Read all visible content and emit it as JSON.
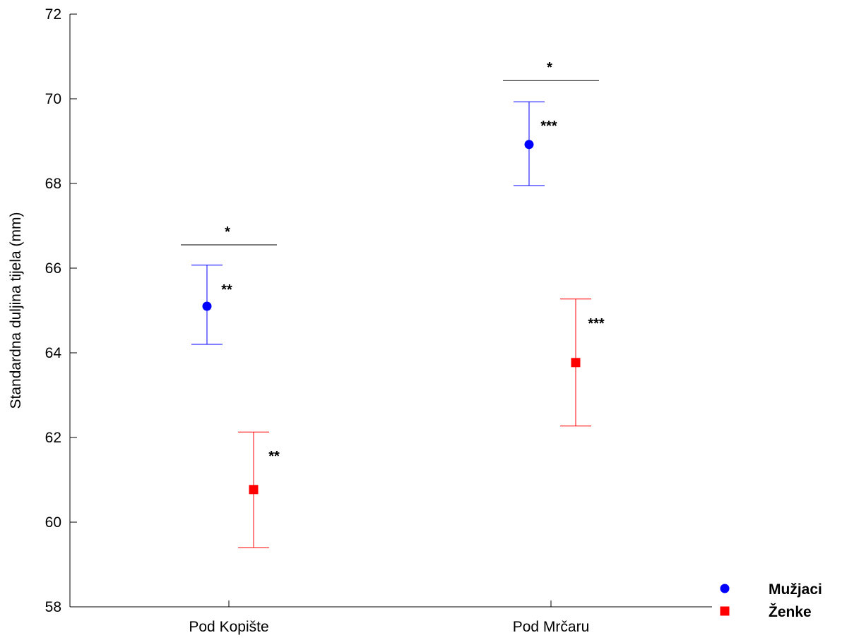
{
  "chart_data": {
    "type": "scatter",
    "title": "",
    "ylabel": "Standardna duljina tijela (mm)",
    "xlabel": "",
    "categories": [
      "Pod Kopište",
      "Pod Mrčaru"
    ],
    "ylim": [
      58,
      72
    ],
    "yticks": [
      "58",
      "60",
      "62",
      "64",
      "66",
      "68",
      "70",
      "72"
    ],
    "grid": false,
    "legend_position": "bottom-right",
    "series": [
      {
        "name": "Mužjaci",
        "color": "#0000ff",
        "marker": "circle",
        "values": [
          65.1,
          68.92
        ],
        "upper": [
          66.07,
          69.93
        ],
        "lower": [
          64.2,
          67.95
        ],
        "annotations": [
          "**",
          "***"
        ]
      },
      {
        "name": "Ženke",
        "color": "#ff0000",
        "marker": "square",
        "values": [
          60.77,
          63.77
        ],
        "upper": [
          62.13,
          65.27
        ],
        "lower": [
          59.4,
          62.27
        ],
        "annotations": [
          "**",
          "***"
        ]
      }
    ],
    "comparisons": [
      {
        "category": "Pod Kopište",
        "y": 66.55,
        "label": "*"
      },
      {
        "category": "Pod Mrčaru",
        "y": 70.43,
        "label": "*"
      }
    ]
  }
}
